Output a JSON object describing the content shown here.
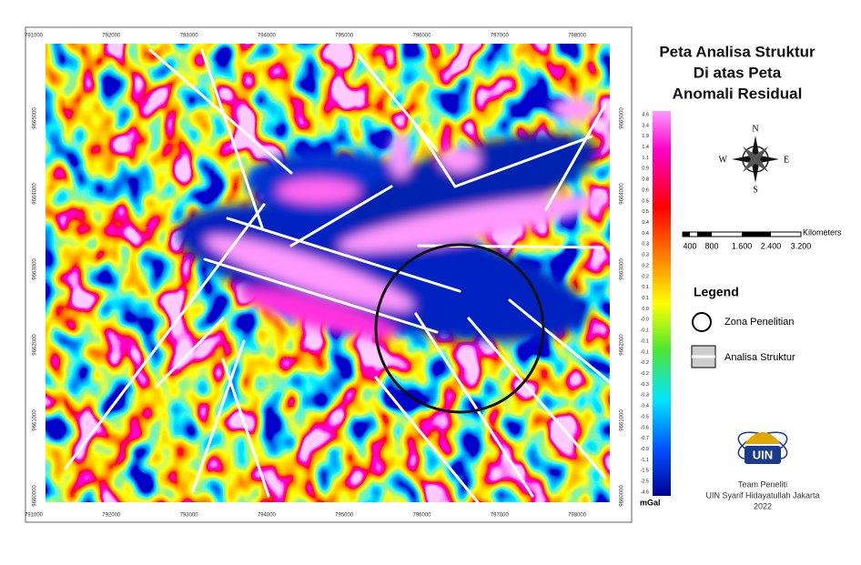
{
  "title_lines": [
    "Peta Analisa Struktur",
    "Di atas Peta",
    "Anomali Residual"
  ],
  "x_ticks": [
    "791000",
    "792000",
    "793000",
    "794000",
    "795000",
    "796000",
    "797000",
    "798000"
  ],
  "y_ticks": [
    "9665000",
    "9664000",
    "9663000",
    "9662000",
    "9661000",
    "9660000"
  ],
  "colorbar": {
    "labels": [
      "4.6",
      "2.4",
      "1.9",
      "1.4",
      "1.1",
      "0.9",
      "0.8",
      "0.6",
      "0.5",
      "0.5",
      "0.4",
      "0.4",
      "0.3",
      "0.3",
      "0.2",
      "0.2",
      "0.1",
      "0.1",
      "0.0",
      "-0.0",
      "-0.1",
      "-0.1",
      "-0.1",
      "-0.2",
      "-0.2",
      "-0.3",
      "-0.3",
      "-0.4",
      "-0.5",
      "-0.6",
      "-0.7",
      "-0.9",
      "-1.1",
      "-1.5",
      "-2.5",
      "-4.6"
    ],
    "unit": "mGal"
  },
  "compass": {
    "n": "N",
    "e": "E",
    "s": "S",
    "w": "W"
  },
  "scale_bar": {
    "unit": "Kilometers",
    "labels": [
      "400",
      "800",
      "1.600",
      "2.400",
      "3.200"
    ]
  },
  "legend": {
    "title": "Legend",
    "items": [
      "Zona Penelitian",
      "Analisa Struktur"
    ]
  },
  "logo": "UIN",
  "footer": [
    "Team Peneliti",
    "UIN Syarif Hidayatullah Jakarta",
    "2022"
  ]
}
